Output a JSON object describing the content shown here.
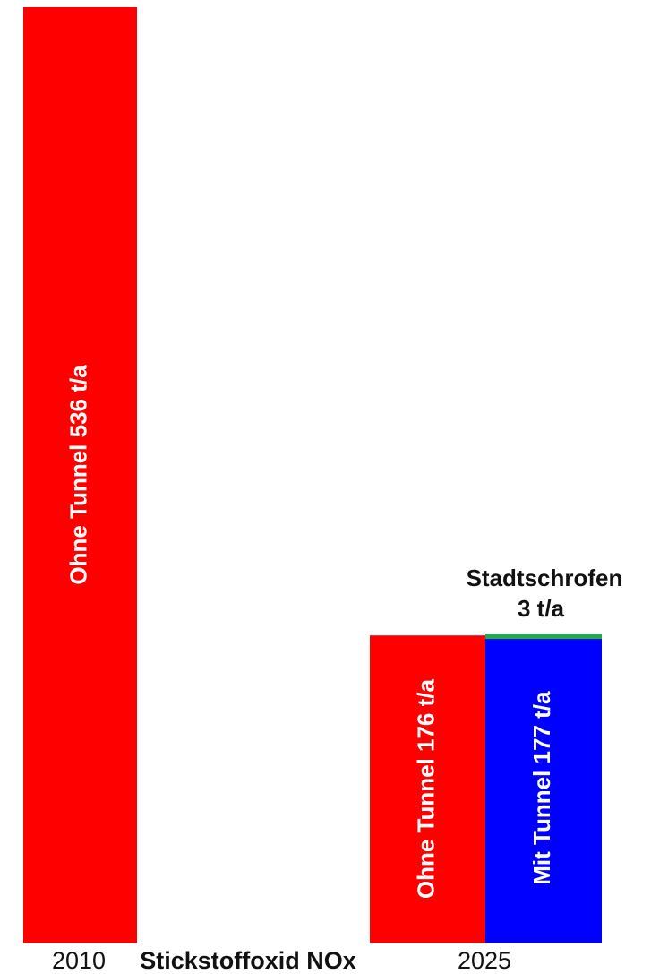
{
  "chart_data": {
    "type": "bar",
    "categories": [
      "2010",
      "2025"
    ],
    "pollutant_label": "Stickstoffoxid NOx",
    "bars": [
      {
        "category": "2010",
        "label": "Ohne Tunnel  536 t/a",
        "value": 536,
        "color": "#ff0000"
      },
      {
        "category": "2025",
        "label": "Ohne Tunnel  176 t/a",
        "value": 176,
        "color": "#ff0000"
      },
      {
        "category": "2025",
        "label": "Mit Tunnel  177 t/a",
        "value": 177,
        "color": "#0000ff",
        "segments": [
          {
            "value": 174,
            "color": "#0000ff"
          },
          {
            "name": "Stadtschrofen",
            "value": 3,
            "color": "#22aa44"
          }
        ]
      }
    ],
    "annotation": {
      "line1": "Stadtschrofen",
      "line2": "3 t/a"
    },
    "ylim": [
      0,
      536
    ],
    "grid": false,
    "legend": "none"
  }
}
